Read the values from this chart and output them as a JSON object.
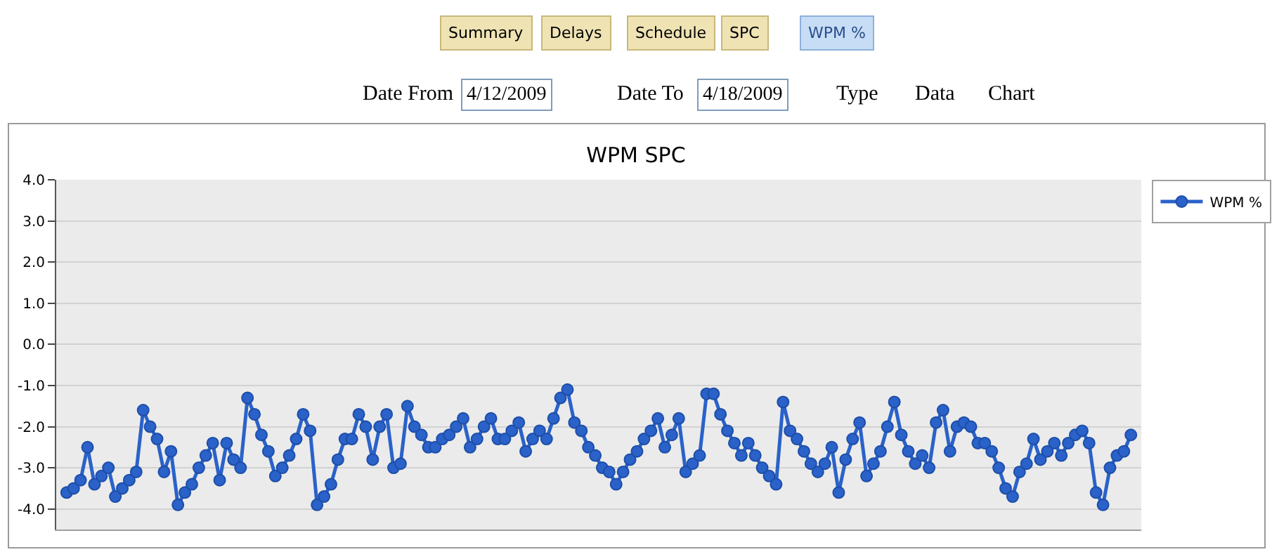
{
  "chart_data": {
    "type": "line",
    "title": "WPM SPC",
    "annotations": [
      "Summary",
      "Delays",
      "Schedule",
      "SPC",
      "WPM %",
      "Date From",
      "4/12/2009",
      "Date To",
      "4/18/2009",
      "Type",
      "Data",
      "Chart"
    ],
    "tick_labels": "y",
    "legend": "top right",
    "grid": "y",
    "marker": "circle",
    "line_style": "solid",
    "categories": [
      null,
      null,
      null,
      null,
      null,
      null,
      null,
      null,
      null,
      null,
      null,
      null,
      null,
      null,
      null,
      null,
      null,
      null,
      null,
      null,
      null,
      null,
      null,
      null,
      null,
      null,
      null,
      null,
      null,
      null,
      null,
      null,
      null,
      null,
      null,
      null,
      null,
      null,
      null,
      null,
      null,
      null,
      null,
      null,
      null,
      null,
      null,
      null,
      null,
      null,
      null,
      null,
      null,
      null,
      null,
      null,
      null,
      null,
      null,
      null,
      null,
      null,
      null,
      null,
      null,
      null,
      null,
      null,
      null,
      null,
      null,
      null,
      null,
      null,
      null,
      null,
      null,
      null,
      null,
      null,
      null,
      null,
      null,
      null,
      null,
      null,
      null,
      null,
      null,
      null,
      null,
      null,
      null,
      null,
      null,
      null,
      null,
      null,
      null,
      null,
      null,
      null,
      null,
      null,
      null,
      null,
      null,
      null,
      null,
      null,
      null,
      null,
      null,
      null,
      null,
      null,
      null,
      null,
      null,
      null,
      null,
      null,
      null,
      null,
      null,
      null,
      null,
      null,
      null,
      null,
      null,
      null,
      null,
      null,
      null,
      null,
      null,
      null,
      null,
      null,
      null,
      null,
      null,
      null,
      null,
      null,
      null,
      null,
      null,
      null,
      null,
      null,
      null,
      null
    ],
    "ylim": [
      -4.5,
      4.0
    ],
    "yticks": [
      {
        "value": 4,
        "label": "4.0"
      },
      {
        "value": 3,
        "label": "3.0"
      },
      {
        "value": 2,
        "label": "2.0"
      },
      {
        "value": 1,
        "label": "1.0"
      },
      {
        "value": 0,
        "label": "0.0"
      },
      {
        "value": -1,
        "label": "-1.0"
      },
      {
        "value": -2,
        "label": "-2.0"
      },
      {
        "value": -3,
        "label": "-3.0"
      },
      {
        "value": -4,
        "label": "-4.0"
      }
    ],
    "series": [
      {
        "name": "WPM %",
        "color": "#2a62c9",
        "values": [
          -3.6,
          -3.5,
          -3.3,
          -2.5,
          -3.4,
          -3.2,
          -3.0,
          -3.7,
          -3.5,
          -3.3,
          -3.1,
          -1.6,
          -2.0,
          -2.3,
          -3.1,
          -2.6,
          -3.9,
          -3.6,
          -3.4,
          -3.0,
          -2.7,
          -2.4,
          -3.3,
          -2.4,
          -2.8,
          -3.0,
          -1.3,
          -1.7,
          -2.2,
          -2.6,
          -3.2,
          -3.0,
          -2.7,
          -2.3,
          -1.7,
          -2.1,
          -3.9,
          -3.7,
          -3.4,
          -2.8,
          -2.3,
          -2.3,
          -1.7,
          -2.0,
          -2.8,
          -2.0,
          -1.7,
          -3.0,
          -2.9,
          -1.5,
          -2.0,
          -2.2,
          -2.5,
          -2.5,
          -2.3,
          -2.2,
          -2.0,
          -1.8,
          -2.5,
          -2.3,
          -2.0,
          -1.8,
          -2.3,
          -2.3,
          -2.1,
          -1.9,
          -2.6,
          -2.3,
          -2.1,
          -2.3,
          -1.8,
          -1.3,
          -1.1,
          -1.9,
          -2.1,
          -2.5,
          -2.7,
          -3.0,
          -3.1,
          -3.4,
          -3.1,
          -2.8,
          -2.6,
          -2.3,
          -2.1,
          -1.8,
          -2.5,
          -2.2,
          -1.8,
          -3.1,
          -2.9,
          -2.7,
          -1.2,
          -1.2,
          -1.7,
          -2.1,
          -2.4,
          -2.7,
          -2.4,
          -2.7,
          -3.0,
          -3.2,
          -3.4,
          -1.4,
          -2.1,
          -2.3,
          -2.6,
          -2.9,
          -3.1,
          -2.9,
          -2.5,
          -3.6,
          -2.8,
          -2.3,
          -1.9,
          -3.2,
          -2.9,
          -2.6,
          -2.0,
          -1.4,
          -2.2,
          -2.6,
          -2.9,
          -2.7,
          -3.0,
          -1.9,
          -1.6,
          -2.6,
          -2.0,
          -1.9,
          -2.0,
          -2.4,
          -2.4,
          -2.6,
          -3.0,
          -3.5,
          -3.7,
          -3.1,
          -2.9,
          -2.3,
          -2.8,
          -2.6,
          -2.4,
          -2.7,
          -2.4,
          -2.2,
          -2.1,
          -2.4,
          -3.6,
          -3.9,
          -3.0,
          -2.7,
          -2.6,
          -2.2
        ]
      }
    ]
  }
}
